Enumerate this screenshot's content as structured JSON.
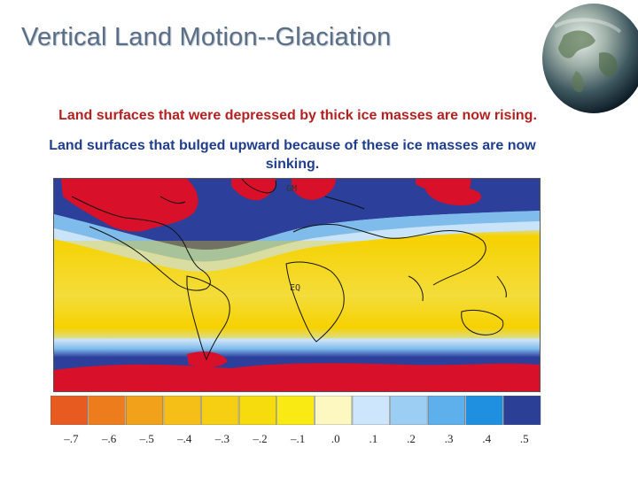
{
  "title": "Vertical Land Motion--Glaciation",
  "text": {
    "line1": "Land surfaces that were depressed by thick ice masses are now rising.",
    "line2": "Land surfaces that bulged upward because of these ice masses are now sinking."
  },
  "map": {
    "label_gm": "GM",
    "label_eq": "EQ",
    "colors": {
      "rise_strong": "#d8102a",
      "sink_band": "#2c3f9a",
      "mid_blue": "#7fbcec",
      "light_blue": "#c9e4f9",
      "yellow": "#f7dc00",
      "ocean_yellow": "#f3e35a"
    }
  },
  "legend": {
    "colors": [
      "#e75a20",
      "#ed7d1c",
      "#f2a21a",
      "#f5bf17",
      "#f6cf12",
      "#f7dc0d",
      "#f8ea12",
      "#fdf7c0",
      "#cde6fb",
      "#9ccdf3",
      "#5eb0ec",
      "#1f8fe0",
      "#2b3f97"
    ],
    "ticks": [
      "–.7",
      "–.6",
      "–.5",
      "–.4",
      "–.3",
      "–.2",
      "–.1",
      ".0",
      ".1",
      ".2",
      ".3",
      ".4",
      ".5"
    ]
  },
  "icons": {
    "globe": "earth-globe-icon"
  }
}
